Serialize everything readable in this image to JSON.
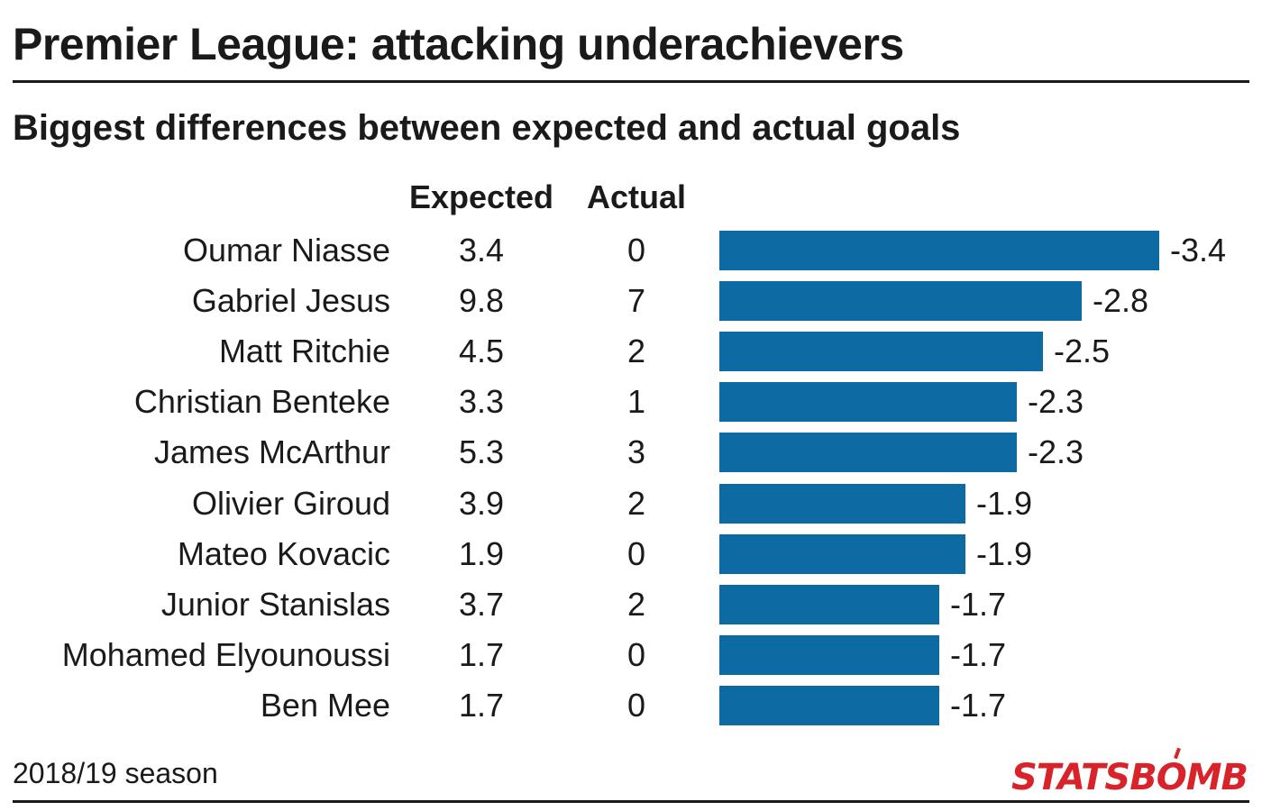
{
  "header": {
    "title": "Premier League: attacking underachievers",
    "subtitle": "Biggest differences between expected and actual goals"
  },
  "columns": {
    "expected": "Expected",
    "actual": "Actual"
  },
  "footer": {
    "season": "2018/19 season",
    "brand": "STATSBOMB"
  },
  "colors": {
    "bar": "#0e6aa3",
    "brand": "#d8232a"
  },
  "chart_data": {
    "type": "bar",
    "orientation": "horizontal",
    "title": "Premier League: attacking underachievers",
    "subtitle": "Biggest differences between expected and actual goals",
    "xlim": [
      0,
      3.4
    ],
    "categories": [
      "Oumar Niasse",
      "Gabriel Jesus",
      "Matt Ritchie",
      "Christian Benteke",
      "James McArthur",
      "Olivier Giroud",
      "Mateo Kovacic",
      "Junior Stanislas",
      "Mohamed Elyounoussi",
      "Ben Mee"
    ],
    "expected": [
      3.4,
      9.8,
      4.5,
      3.3,
      5.3,
      3.9,
      1.9,
      3.7,
      1.7,
      1.7
    ],
    "actual": [
      0,
      7,
      2,
      1,
      3,
      2,
      0,
      2,
      0,
      0
    ],
    "difference_labels": [
      "-3.4",
      "-2.8",
      "-2.5",
      "-2.3",
      "-2.3",
      "-1.9",
      "-1.9",
      "-1.7",
      "-1.7",
      "-1.7"
    ],
    "values": [
      3.4,
      2.8,
      2.5,
      2.3,
      2.3,
      1.9,
      1.9,
      1.7,
      1.7,
      1.7
    ]
  }
}
